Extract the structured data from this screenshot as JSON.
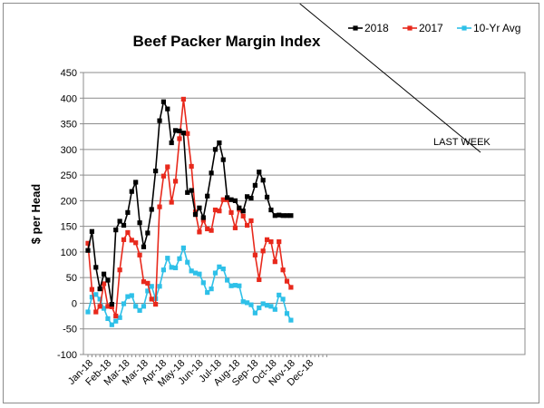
{
  "chart_data": {
    "type": "line",
    "title": "Beef Packer Margin Index",
    "ylabel": "$ per Head",
    "xlabel": "",
    "ylim": [
      -100,
      450
    ],
    "yticks": [
      -100,
      -50,
      0,
      50,
      100,
      150,
      200,
      250,
      300,
      350,
      400,
      450
    ],
    "xtick_labels": [
      "Jan-18",
      "Feb-18",
      "Mar-18",
      "Mar-18",
      "Apr-18",
      "May-18",
      "Jun-18",
      "Jul-18",
      "Aug-18",
      "Sep-18",
      "Oct-18",
      "Nov-18",
      "Dec-18"
    ],
    "grid": "horizontal",
    "legend_position": "top-right",
    "annotation": "LAST WEEK",
    "annotation_week": 53,
    "weeks": 60,
    "series": [
      {
        "name": "2018",
        "color": "#000000",
        "values": [
          103,
          140,
          70,
          28,
          57,
          45,
          -2,
          143,
          160,
          152,
          177,
          218,
          236,
          157,
          110,
          137,
          183,
          258,
          356,
          393,
          379,
          313,
          337,
          336,
          332,
          216,
          220,
          173,
          186,
          167,
          209,
          254,
          300,
          313,
          280,
          206,
          202,
          200,
          186,
          180,
          208,
          205,
          230,
          256,
          240,
          207,
          182,
          171,
          172,
          171,
          171,
          171
        ]
      },
      {
        "name": "2017",
        "color": "#e8291c",
        "values": [
          117,
          27,
          -17,
          -6,
          38,
          -6,
          -7,
          -25,
          65,
          124,
          138,
          123,
          118,
          94,
          42,
          39,
          8,
          -2,
          188,
          248,
          266,
          197,
          238,
          321,
          398,
          331,
          267,
          178,
          139,
          162,
          145,
          142,
          182,
          180,
          202,
          202,
          177,
          147,
          183,
          170,
          152,
          161,
          94,
          46,
          102,
          124,
          120,
          81,
          120,
          65,
          43,
          31
        ]
      },
      {
        "name": "10-Yr Avg",
        "color": "#2ec0e8",
        "values": [
          -17,
          12,
          17,
          8,
          -10,
          -30,
          -42,
          -35,
          -28,
          -1,
          13,
          15,
          -6,
          -14,
          -6,
          24,
          33,
          9,
          33,
          65,
          88,
          70,
          69,
          87,
          108,
          80,
          63,
          59,
          57,
          40,
          21,
          28,
          59,
          71,
          67,
          45,
          34,
          35,
          34,
          3,
          1,
          -3,
          -19,
          -9,
          -1,
          -4,
          -6,
          -12,
          16,
          8,
          -20,
          -33
        ]
      }
    ]
  }
}
